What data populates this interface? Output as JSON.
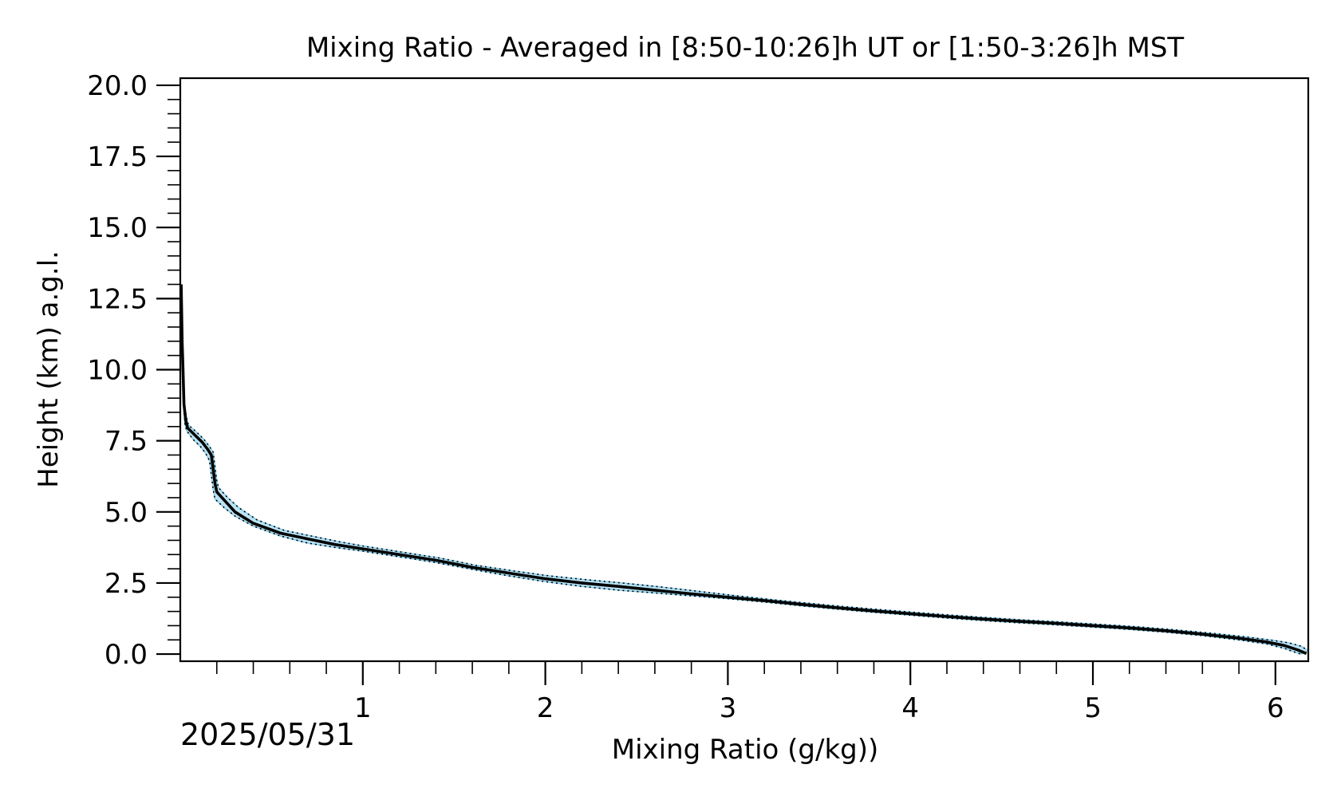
{
  "chart_data": {
    "type": "line",
    "title": "Mixing Ratio - Averaged in [8:50-10:26]h UT or [1:50-3:26]h MST",
    "xlabel": "Mixing Ratio (g/kg))",
    "ylabel": "Height (km) a.g.l.",
    "date_label": "2025/05/31",
    "xlim": [
      0.0,
      6.18
    ],
    "ylim": [
      -0.25,
      20.25
    ],
    "x_ticks": [
      {
        "value": 1,
        "label": "1"
      },
      {
        "value": 2,
        "label": "2"
      },
      {
        "value": 3,
        "label": "3"
      },
      {
        "value": 4,
        "label": "4"
      },
      {
        "value": 5,
        "label": "5"
      },
      {
        "value": 6,
        "label": "6"
      }
    ],
    "y_ticks": [
      {
        "value": 0.0,
        "label": "0.0"
      },
      {
        "value": 2.5,
        "label": "2.5"
      },
      {
        "value": 5.0,
        "label": "5.0"
      },
      {
        "value": 7.5,
        "label": "7.5"
      },
      {
        "value": 10.0,
        "label": "10.0"
      },
      {
        "value": 12.5,
        "label": "12.5"
      },
      {
        "value": 15.0,
        "label": "15.0"
      },
      {
        "value": 17.5,
        "label": "17.5"
      },
      {
        "value": 20.0,
        "label": "20.0"
      }
    ],
    "grid": false,
    "colors": {
      "mean": "#000000",
      "band": "#87ceeb",
      "bounds": "#000000"
    },
    "series": [
      {
        "role": "mean",
        "points": [
          [
            0.005,
            13.0
          ],
          [
            0.01,
            11.0
          ],
          [
            0.015,
            10.0
          ],
          [
            0.02,
            8.8
          ],
          [
            0.03,
            8.2
          ],
          [
            0.04,
            7.95
          ],
          [
            0.08,
            7.7
          ],
          [
            0.12,
            7.45
          ],
          [
            0.15,
            7.2
          ],
          [
            0.17,
            7.0
          ],
          [
            0.18,
            6.5
          ],
          [
            0.19,
            6.0
          ],
          [
            0.2,
            5.7
          ],
          [
            0.25,
            5.35
          ],
          [
            0.3,
            5.0
          ],
          [
            0.4,
            4.6
          ],
          [
            0.55,
            4.25
          ],
          [
            0.7,
            4.05
          ],
          [
            0.85,
            3.85
          ],
          [
            1.0,
            3.7
          ],
          [
            1.2,
            3.5
          ],
          [
            1.4,
            3.3
          ],
          [
            1.6,
            3.05
          ],
          [
            1.8,
            2.85
          ],
          [
            2.0,
            2.65
          ],
          [
            2.2,
            2.5
          ],
          [
            2.4,
            2.38
          ],
          [
            2.6,
            2.25
          ],
          [
            2.8,
            2.12
          ],
          [
            3.0,
            2.0
          ],
          [
            3.2,
            1.88
          ],
          [
            3.4,
            1.75
          ],
          [
            3.6,
            1.63
          ],
          [
            3.8,
            1.52
          ],
          [
            4.0,
            1.42
          ],
          [
            4.2,
            1.32
          ],
          [
            4.4,
            1.23
          ],
          [
            4.6,
            1.15
          ],
          [
            4.8,
            1.08
          ],
          [
            5.0,
            1.0
          ],
          [
            5.2,
            0.92
          ],
          [
            5.4,
            0.82
          ],
          [
            5.6,
            0.7
          ],
          [
            5.8,
            0.56
          ],
          [
            5.95,
            0.43
          ],
          [
            6.05,
            0.3
          ],
          [
            6.12,
            0.15
          ],
          [
            6.17,
            0.02
          ]
        ]
      },
      {
        "role": "lower-bound",
        "points": [
          [
            0.005,
            13.0
          ],
          [
            0.01,
            11.0
          ],
          [
            0.015,
            10.0
          ],
          [
            0.02,
            8.8
          ],
          [
            0.025,
            8.1
          ],
          [
            0.035,
            7.85
          ],
          [
            0.07,
            7.55
          ],
          [
            0.11,
            7.3
          ],
          [
            0.14,
            7.05
          ],
          [
            0.16,
            6.8
          ],
          [
            0.17,
            6.3
          ],
          [
            0.18,
            5.8
          ],
          [
            0.19,
            5.45
          ],
          [
            0.24,
            5.15
          ],
          [
            0.3,
            4.85
          ],
          [
            0.4,
            4.5
          ],
          [
            0.55,
            4.15
          ],
          [
            0.7,
            3.9
          ],
          [
            0.85,
            3.75
          ],
          [
            1.0,
            3.62
          ],
          [
            1.2,
            3.42
          ],
          [
            1.4,
            3.22
          ],
          [
            1.6,
            2.98
          ],
          [
            1.8,
            2.75
          ],
          [
            2.0,
            2.55
          ],
          [
            2.2,
            2.38
          ],
          [
            2.4,
            2.25
          ],
          [
            2.6,
            2.15
          ],
          [
            2.8,
            2.05
          ],
          [
            3.0,
            1.95
          ],
          [
            3.2,
            1.83
          ],
          [
            3.4,
            1.7
          ],
          [
            3.6,
            1.58
          ],
          [
            3.8,
            1.47
          ],
          [
            4.0,
            1.37
          ],
          [
            4.2,
            1.27
          ],
          [
            4.4,
            1.18
          ],
          [
            4.6,
            1.1
          ],
          [
            4.8,
            1.03
          ],
          [
            5.0,
            0.95
          ],
          [
            5.2,
            0.87
          ],
          [
            5.4,
            0.77
          ],
          [
            5.6,
            0.65
          ],
          [
            5.8,
            0.5
          ],
          [
            5.95,
            0.36
          ],
          [
            6.05,
            0.2
          ],
          [
            6.1,
            0.08
          ],
          [
            6.14,
            0.0
          ]
        ]
      },
      {
        "role": "upper-bound",
        "points": [
          [
            0.005,
            13.0
          ],
          [
            0.01,
            11.0
          ],
          [
            0.015,
            10.0
          ],
          [
            0.02,
            8.8
          ],
          [
            0.035,
            8.3
          ],
          [
            0.045,
            8.05
          ],
          [
            0.09,
            7.8
          ],
          [
            0.13,
            7.55
          ],
          [
            0.16,
            7.3
          ],
          [
            0.18,
            7.1
          ],
          [
            0.19,
            6.6
          ],
          [
            0.2,
            6.1
          ],
          [
            0.21,
            5.85
          ],
          [
            0.26,
            5.5
          ],
          [
            0.32,
            5.15
          ],
          [
            0.42,
            4.72
          ],
          [
            0.57,
            4.35
          ],
          [
            0.72,
            4.15
          ],
          [
            0.87,
            3.95
          ],
          [
            1.02,
            3.78
          ],
          [
            1.22,
            3.58
          ],
          [
            1.42,
            3.38
          ],
          [
            1.62,
            3.12
          ],
          [
            1.82,
            2.93
          ],
          [
            2.02,
            2.75
          ],
          [
            2.22,
            2.62
          ],
          [
            2.42,
            2.5
          ],
          [
            2.62,
            2.37
          ],
          [
            2.82,
            2.22
          ],
          [
            3.02,
            2.07
          ],
          [
            3.22,
            1.93
          ],
          [
            3.42,
            1.8
          ],
          [
            3.62,
            1.68
          ],
          [
            3.82,
            1.57
          ],
          [
            4.02,
            1.47
          ],
          [
            4.22,
            1.37
          ],
          [
            4.42,
            1.28
          ],
          [
            4.62,
            1.2
          ],
          [
            4.82,
            1.13
          ],
          [
            5.02,
            1.05
          ],
          [
            5.22,
            0.97
          ],
          [
            5.42,
            0.87
          ],
          [
            5.62,
            0.75
          ],
          [
            5.82,
            0.62
          ],
          [
            5.97,
            0.5
          ],
          [
            6.07,
            0.4
          ],
          [
            6.14,
            0.28
          ],
          [
            6.18,
            0.12
          ]
        ]
      }
    ]
  }
}
